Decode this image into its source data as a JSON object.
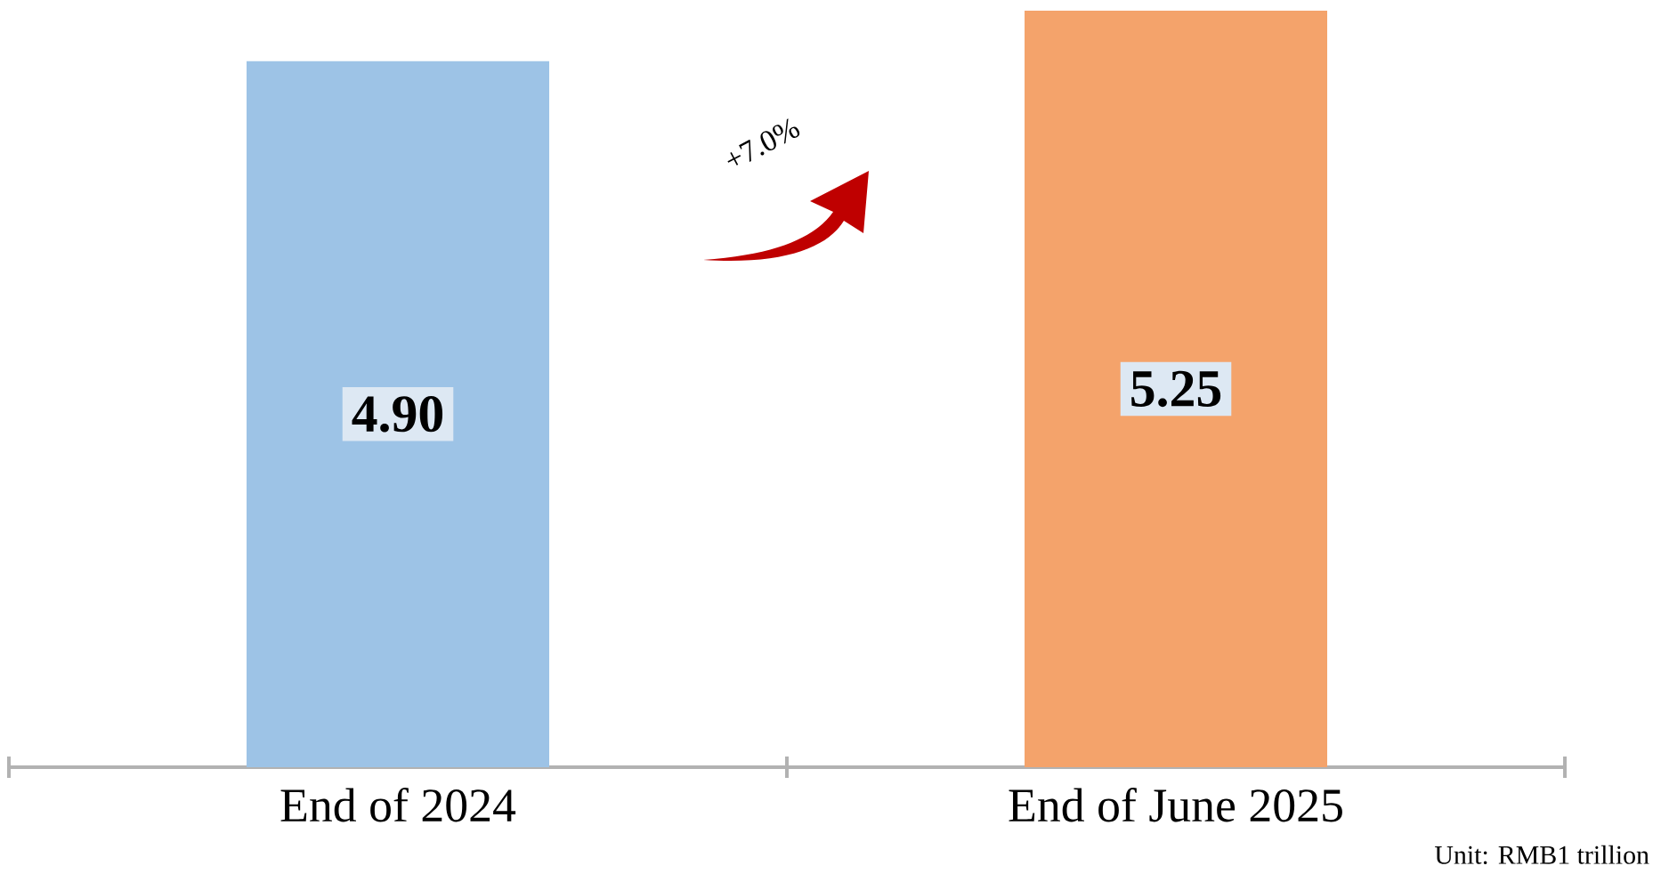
{
  "chart_data": {
    "type": "bar",
    "categories": [
      "End of 2024",
      "End of June 2025"
    ],
    "values": [
      4.9,
      5.25
    ],
    "value_labels": [
      "4.90",
      "5.25"
    ],
    "colors": [
      "#9dc3e6",
      "#f4a36b"
    ],
    "annotations": [
      "+7.0%",
      "Unit: RMB1 trillion"
    ]
  }
}
